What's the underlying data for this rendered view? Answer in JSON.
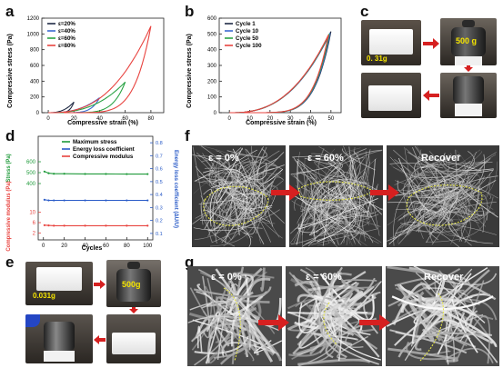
{
  "panels": {
    "a": "a",
    "b": "b",
    "c": "c",
    "d": "d",
    "e": "e",
    "f": "f",
    "g": "g"
  },
  "charts": {
    "a": {
      "ylabel": "Compressive stress (Pa)",
      "xlabel": "Compressive strain (%)",
      "xticks": [
        "0",
        "20",
        "40",
        "60",
        "80"
      ],
      "yticks": [
        "0",
        "200",
        "400",
        "600",
        "800",
        "1000",
        "1200"
      ]
    },
    "b": {
      "ylabel": "Compressive stress (Pa)",
      "xlabel": "Compressive strain (%)",
      "xticks": [
        "0",
        "10",
        "20",
        "30",
        "40",
        "50"
      ],
      "yticks": [
        "0",
        "100",
        "200",
        "300",
        "400",
        "500",
        "600"
      ]
    },
    "d": {
      "xlabel": "Cycles",
      "xticks": [
        "0",
        "20",
        "40",
        "60",
        "80",
        "100"
      ],
      "ylabel_stress": "Stress (Pa)",
      "ylabel_modulus": "Compressive modulus (Pa)",
      "ylabel_right": "Energy loss coefficient (ΔU/U)",
      "stress_ticks": [
        "400",
        "500",
        "600"
      ],
      "modulus_ticks": [
        "2",
        "6",
        "10"
      ],
      "right_ticks": [
        "0.1",
        "0.2",
        "0.3",
        "0.4",
        "0.5",
        "0.6",
        "0.7",
        "0.8"
      ]
    }
  },
  "chart_data": [
    {
      "panel": "a",
      "type": "line",
      "xlabel": "Compressive strain (%)",
      "ylabel": "Compressive stress (Pa)",
      "xlim": [
        -5,
        90
      ],
      "ylim": [
        0,
        1200
      ],
      "legend_position": "top-left",
      "series": [
        {
          "name": "ε=20%",
          "color": "#1f2a44",
          "strain": 20,
          "peak": 135
        },
        {
          "name": "ε=40%",
          "color": "#3a6ad1",
          "strain": 40,
          "peak": 190
        },
        {
          "name": "ε=60%",
          "color": "#2aa345",
          "strain": 60,
          "peak": 390
        },
        {
          "name": "ε=80%",
          "color": "#e8433f",
          "strain": 80,
          "peak": 1100
        }
      ]
    },
    {
      "panel": "b",
      "type": "line",
      "xlabel": "Compressive strain (%)",
      "ylabel": "Compressive stress (Pa)",
      "xlim": [
        -5,
        55
      ],
      "ylim": [
        0,
        600
      ],
      "legend_position": "top-left",
      "series": [
        {
          "name": "Cycle 1",
          "color": "#1f2a44",
          "peak": 515
        },
        {
          "name": "Cycle 10",
          "color": "#3a6ad1",
          "peak": 505
        },
        {
          "name": "Cycle 50",
          "color": "#2aa345",
          "peak": 500
        },
        {
          "name": "Cycle 100",
          "color": "#e8433f",
          "peak": 495
        }
      ]
    },
    {
      "panel": "d",
      "type": "line",
      "xlabel": "Cycles",
      "xlim": [
        -5,
        105
      ],
      "legend_position": "top-center",
      "series": [
        {
          "name": "Maximum stress",
          "color": "#1f9a3a",
          "axis": "Stress (Pa)",
          "ylim": [
            350,
            650
          ],
          "x": [
            1,
            5,
            10,
            20,
            40,
            60,
            80,
            100
          ],
          "values": [
            510,
            495,
            490,
            490,
            488,
            488,
            487,
            487
          ]
        },
        {
          "name": "Energy loss coefficient",
          "color": "#2b5cc8",
          "axis": "Energy loss coefficient (ΔU/U)",
          "ylim": [
            0.05,
            0.85
          ],
          "x": [
            1,
            5,
            10,
            20,
            40,
            60,
            80,
            100
          ],
          "values": [
            0.36,
            0.355,
            0.355,
            0.355,
            0.355,
            0.355,
            0.355,
            0.355
          ]
        },
        {
          "name": "Compressive modulus",
          "color": "#e8433f",
          "axis": "Compressive modulus (Pa)",
          "ylim": [
            0,
            12
          ],
          "x": [
            1,
            5,
            10,
            20,
            40,
            60,
            80,
            100
          ],
          "values": [
            5.0,
            4.9,
            4.8,
            4.8,
            4.8,
            4.8,
            4.8,
            4.8
          ]
        }
      ]
    }
  ],
  "photos": {
    "c_weight": "0. 31g",
    "c_mass": "500 g",
    "e_weight": "0.031g",
    "e_mass": "500g"
  },
  "sem": {
    "f_strain0": "ε = 0%",
    "f_strain60": "ε = 60%",
    "f_recover": "Recover",
    "g_strain0": "ε = 0%",
    "g_strain60": "ε = 60%",
    "g_recover": "Recover"
  },
  "colors": {
    "arrow": "#d62020",
    "highlight": "#e6e64a",
    "label_yellow": "#f5e400"
  }
}
